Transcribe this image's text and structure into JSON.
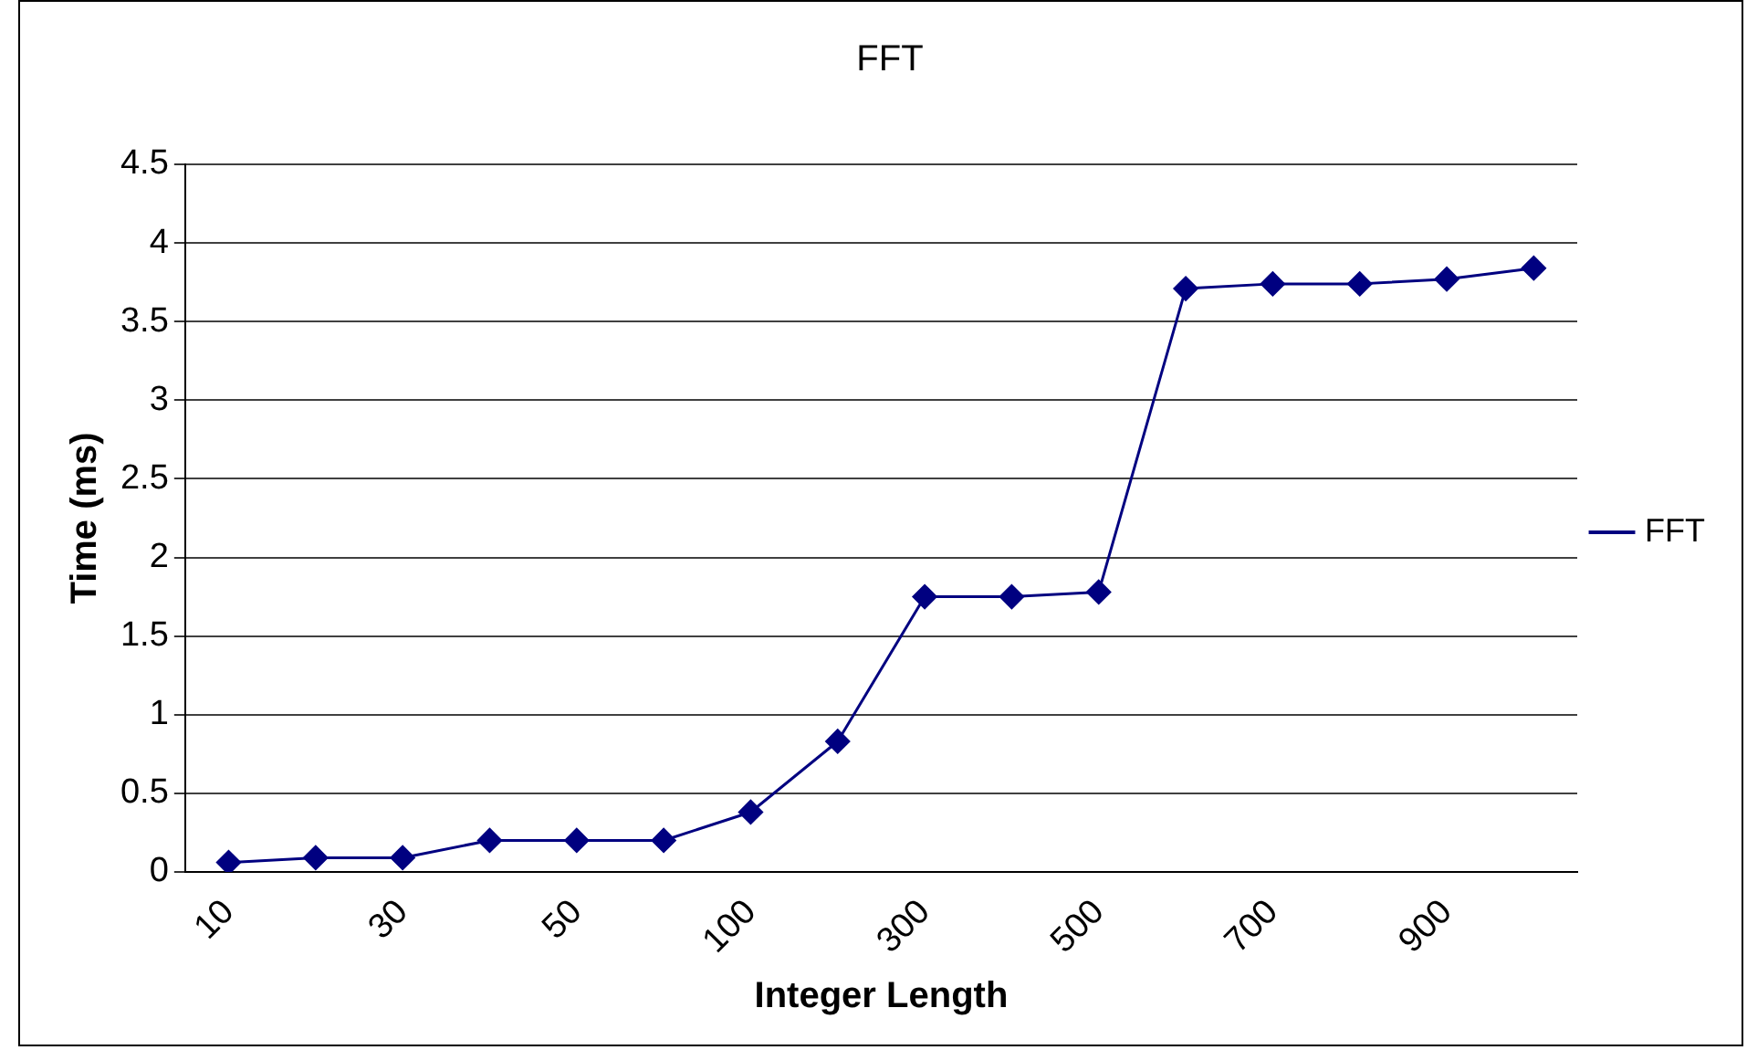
{
  "chart_data": {
    "type": "line",
    "title": "FFT",
    "xlabel": "Integer Length",
    "ylabel": "Time (ms)",
    "categories": [
      "10",
      null,
      "30",
      null,
      "50",
      null,
      "100",
      null,
      "300",
      null,
      "500",
      null,
      "700",
      null,
      "900",
      null
    ],
    "series": [
      {
        "name": "FFT",
        "color": "#000080",
        "values": [
          0.06,
          0.09,
          0.09,
          0.2,
          0.2,
          0.2,
          0.38,
          0.83,
          1.75,
          1.75,
          1.78,
          3.71,
          3.74,
          3.74,
          3.77,
          3.84
        ]
      }
    ],
    "ylim": [
      0,
      4.5
    ],
    "yticks": [
      0,
      0.5,
      1,
      1.5,
      2,
      2.5,
      3,
      3.5,
      4,
      4.5
    ],
    "grid": "y",
    "legend": "right",
    "marker": "diamond",
    "line_style": "solid"
  }
}
